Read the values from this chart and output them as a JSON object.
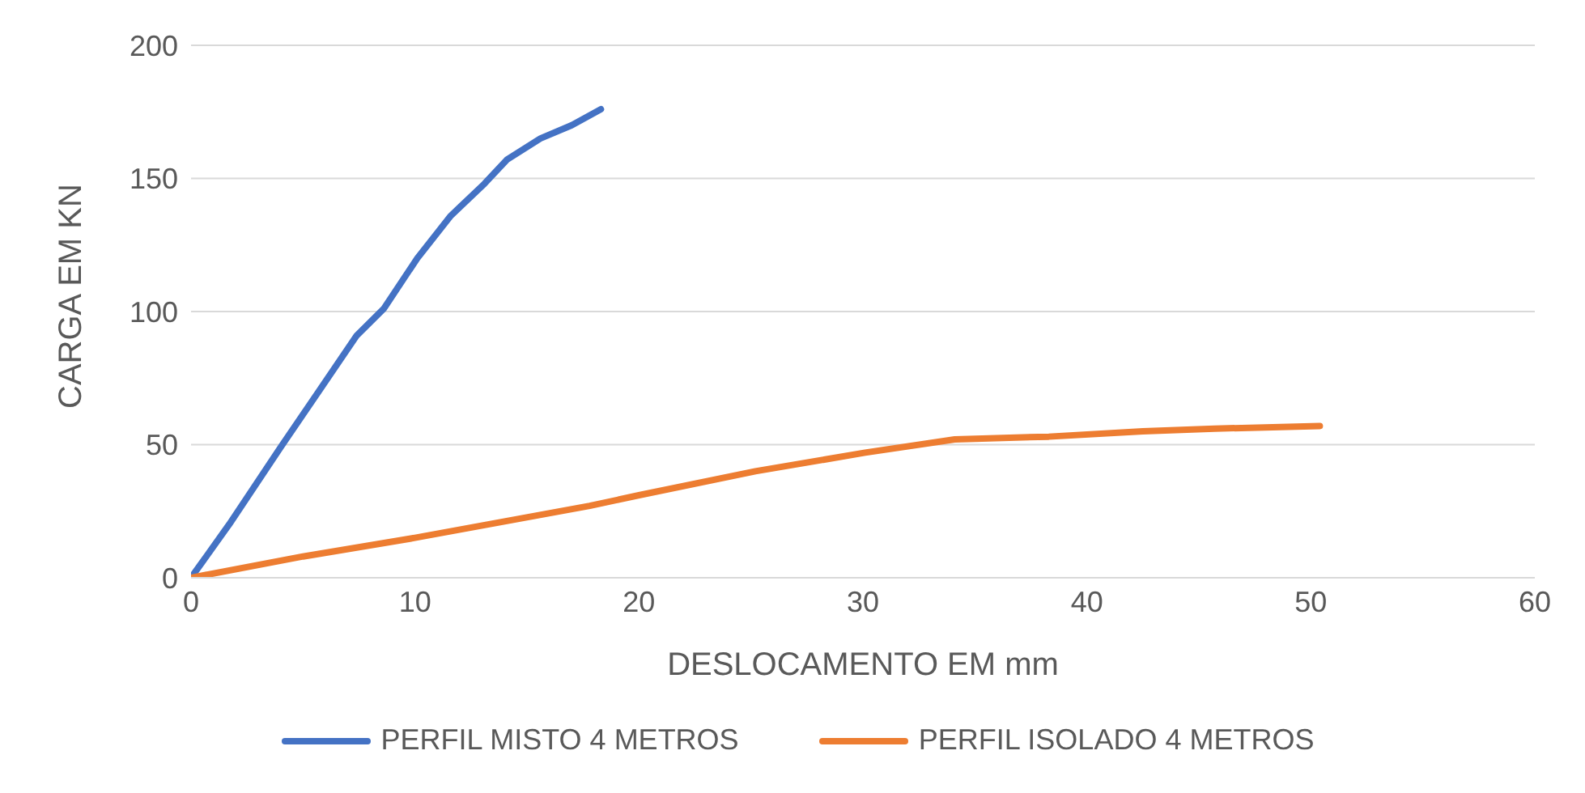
{
  "chart_data": {
    "type": "line",
    "xlabel": "DESLOCAMENTO EM mm",
    "ylabel": "CARGA EM KN",
    "xlim": [
      0,
      60
    ],
    "xticks": [
      0,
      10,
      20,
      30,
      40,
      50,
      60
    ],
    "ylim": [
      0,
      200
    ],
    "yticks": [
      0,
      50,
      100,
      150,
      200
    ],
    "grid": "y",
    "legend": "bottom",
    "marker": "none",
    "line_style": "solid",
    "series": [
      {
        "name": "PERFIL MISTO 4 METROS",
        "color": "#4472c4",
        "x": [
          0,
          1.7,
          4,
          5.7,
          7.4,
          8.6,
          10.1,
          11.6,
          13.1,
          14.1,
          15.6,
          17,
          18.3
        ],
        "values": [
          0,
          20,
          49,
          70,
          91,
          101,
          120,
          136,
          148,
          157,
          165,
          170,
          176
        ]
      },
      {
        "name": "PERFIL ISOLADO 4 METROS",
        "color": "#ed7d31",
        "x": [
          0,
          5,
          10,
          17.8,
          20,
          25.2,
          30.1,
          34.1,
          38.3,
          42.5,
          45.7,
          50.4
        ],
        "values": [
          0,
          8,
          15,
          27,
          31,
          40,
          47,
          52,
          53,
          55,
          56,
          57
        ]
      }
    ]
  }
}
